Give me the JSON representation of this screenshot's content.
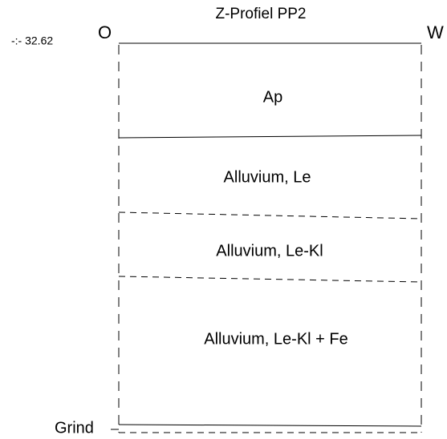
{
  "title": "Z-Profiel PP2",
  "orientation": {
    "left": "O",
    "right": "W"
  },
  "level": "-:- 32.62",
  "layers": [
    {
      "label": "Ap"
    },
    {
      "label": "Alluvium, Le"
    },
    {
      "label": "Alluvium, Le-Kl"
    },
    {
      "label": "Alluvium, Le-Kl + Fe"
    }
  ],
  "base": "Grind"
}
